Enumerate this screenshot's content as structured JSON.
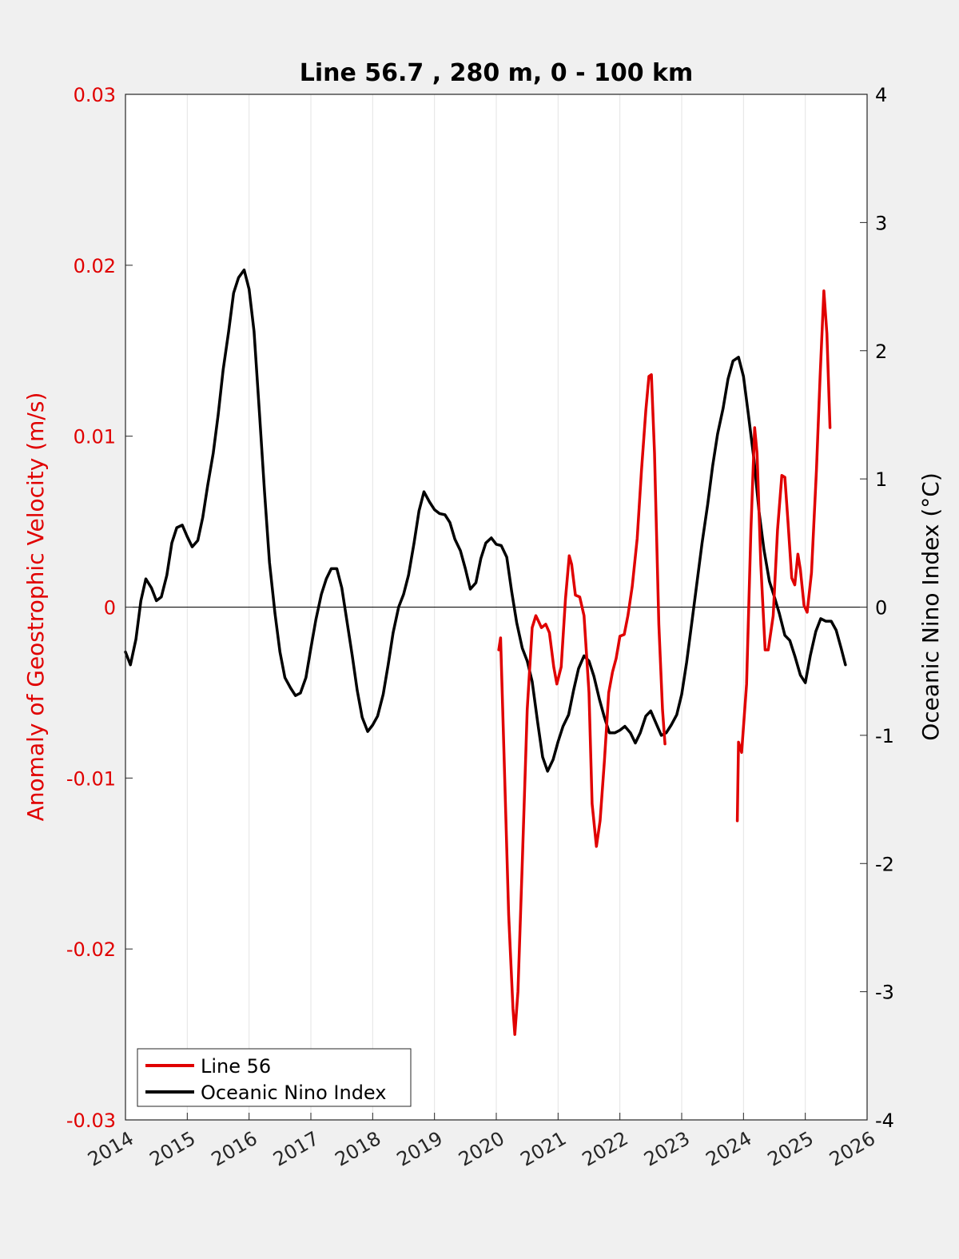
{
  "chart_data": {
    "type": "line",
    "title": "Line 56.7 , 280 m, 0 - 100 km",
    "ylabel_left": "Anomaly of Geostrophic Velocity (m/s)",
    "ylabel_right": "Oceanic Nino Index (°C)",
    "xlim": [
      2014,
      2026
    ],
    "ylim_left": [
      -0.03,
      0.03
    ],
    "ylim_right": [
      -4,
      4
    ],
    "x_ticks": [
      "2014",
      "2015",
      "2016",
      "2017",
      "2018",
      "2019",
      "2020",
      "2021",
      "2022",
      "2023",
      "2024",
      "2025",
      "2026"
    ],
    "y_left_ticks": [
      "0.03",
      "0.02",
      "0.01",
      "0",
      "-0.01",
      "-0.02",
      "-0.03"
    ],
    "y_right_ticks": [
      "4",
      "3",
      "2",
      "1",
      "0",
      "-1",
      "-2",
      "-3",
      "-4"
    ],
    "grid": "vertical",
    "legend_position": "bottom-left",
    "colors": {
      "line56": "#e00000",
      "oni": "#000000"
    },
    "series": [
      {
        "name": "Line 56",
        "axis": "left",
        "segments": [
          [
            [
              2020.04,
              -0.0025
            ],
            [
              2020.07,
              -0.0018
            ],
            [
              2020.12,
              -0.008
            ],
            [
              2020.2,
              -0.018
            ],
            [
              2020.27,
              -0.0235
            ],
            [
              2020.3,
              -0.025
            ],
            [
              2020.35,
              -0.0225
            ],
            [
              2020.42,
              -0.015
            ],
            [
              2020.5,
              -0.006
            ],
            [
              2020.58,
              -0.0012
            ],
            [
              2020.64,
              -0.0005
            ],
            [
              2020.68,
              -0.0008
            ],
            [
              2020.73,
              -0.0012
            ],
            [
              2020.8,
              -0.001
            ],
            [
              2020.86,
              -0.0015
            ],
            [
              2020.93,
              -0.0035
            ],
            [
              2020.98,
              -0.0045
            ],
            [
              2021.05,
              -0.0035
            ],
            [
              2021.12,
              0.0005
            ],
            [
              2021.18,
              0.003
            ],
            [
              2021.22,
              0.0025
            ],
            [
              2021.28,
              0.0007
            ],
            [
              2021.35,
              0.0006
            ],
            [
              2021.42,
              -0.0005
            ],
            [
              2021.5,
              -0.005
            ],
            [
              2021.55,
              -0.0115
            ],
            [
              2021.62,
              -0.014
            ],
            [
              2021.68,
              -0.0125
            ],
            [
              2021.75,
              -0.009
            ],
            [
              2021.82,
              -0.005
            ],
            [
              2021.88,
              -0.0038
            ],
            [
              2021.94,
              -0.003
            ],
            [
              2022.0,
              -0.0017
            ],
            [
              2022.07,
              -0.0016
            ],
            [
              2022.13,
              -0.0005
            ],
            [
              2022.2,
              0.0012
            ],
            [
              2022.28,
              0.004
            ],
            [
              2022.35,
              0.008
            ],
            [
              2022.42,
              0.0115
            ],
            [
              2022.47,
              0.0135
            ],
            [
              2022.51,
              0.0136
            ],
            [
              2022.56,
              0.009
            ],
            [
              2022.63,
              -0.001
            ],
            [
              2022.69,
              -0.006
            ],
            [
              2022.73,
              -0.008
            ]
          ],
          [
            [
              2023.9,
              -0.0125
            ],
            [
              2023.92,
              -0.0079
            ],
            [
              2023.97,
              -0.0085
            ],
            [
              2024.05,
              -0.0045
            ],
            [
              2024.12,
              0.0045
            ],
            [
              2024.18,
              0.0105
            ],
            [
              2024.22,
              0.009
            ],
            [
              2024.28,
              0.0025
            ],
            [
              2024.35,
              -0.0025
            ],
            [
              2024.4,
              -0.0025
            ],
            [
              2024.48,
              -0.0005
            ],
            [
              2024.55,
              0.0045
            ],
            [
              2024.62,
              0.0077
            ],
            [
              2024.67,
              0.0076
            ],
            [
              2024.72,
              0.005
            ],
            [
              2024.78,
              0.0017
            ],
            [
              2024.83,
              0.0013
            ],
            [
              2024.88,
              0.0031
            ],
            [
              2024.92,
              0.0022
            ],
            [
              2024.98,
              0.0001
            ],
            [
              2025.03,
              -0.0003
            ],
            [
              2025.1,
              0.002
            ],
            [
              2025.18,
              0.008
            ],
            [
              2025.24,
              0.0135
            ],
            [
              2025.3,
              0.0185
            ],
            [
              2025.35,
              0.016
            ],
            [
              2025.4,
              0.0105
            ]
          ]
        ]
      },
      {
        "name": "Oceanic Nino Index",
        "axis": "right",
        "points": [
          [
            2014.0,
            -0.35
          ],
          [
            2014.08,
            -0.45
          ],
          [
            2014.17,
            -0.25
          ],
          [
            2014.25,
            0.05
          ],
          [
            2014.33,
            0.22
          ],
          [
            2014.42,
            0.15
          ],
          [
            2014.5,
            0.05
          ],
          [
            2014.58,
            0.08
          ],
          [
            2014.67,
            0.25
          ],
          [
            2014.75,
            0.5
          ],
          [
            2014.83,
            0.62
          ],
          [
            2014.92,
            0.64
          ],
          [
            2015.0,
            0.55
          ],
          [
            2015.08,
            0.47
          ],
          [
            2015.17,
            0.52
          ],
          [
            2015.25,
            0.7
          ],
          [
            2015.33,
            0.95
          ],
          [
            2015.42,
            1.2
          ],
          [
            2015.5,
            1.5
          ],
          [
            2015.58,
            1.85
          ],
          [
            2015.67,
            2.15
          ],
          [
            2015.75,
            2.45
          ],
          [
            2015.83,
            2.57
          ],
          [
            2015.92,
            2.63
          ],
          [
            2016.0,
            2.48
          ],
          [
            2016.08,
            2.15
          ],
          [
            2016.17,
            1.5
          ],
          [
            2016.25,
            0.9
          ],
          [
            2016.33,
            0.35
          ],
          [
            2016.42,
            -0.05
          ],
          [
            2016.5,
            -0.35
          ],
          [
            2016.58,
            -0.55
          ],
          [
            2016.67,
            -0.63
          ],
          [
            2016.75,
            -0.69
          ],
          [
            2016.83,
            -0.67
          ],
          [
            2016.92,
            -0.55
          ],
          [
            2017.0,
            -0.32
          ],
          [
            2017.08,
            -0.1
          ],
          [
            2017.17,
            0.1
          ],
          [
            2017.25,
            0.22
          ],
          [
            2017.33,
            0.3
          ],
          [
            2017.42,
            0.3
          ],
          [
            2017.5,
            0.15
          ],
          [
            2017.58,
            -0.1
          ],
          [
            2017.67,
            -0.38
          ],
          [
            2017.75,
            -0.65
          ],
          [
            2017.83,
            -0.86
          ],
          [
            2017.92,
            -0.97
          ],
          [
            2018.0,
            -0.92
          ],
          [
            2018.08,
            -0.85
          ],
          [
            2018.17,
            -0.68
          ],
          [
            2018.25,
            -0.45
          ],
          [
            2018.33,
            -0.2
          ],
          [
            2018.42,
            0.0
          ],
          [
            2018.5,
            0.1
          ],
          [
            2018.58,
            0.25
          ],
          [
            2018.67,
            0.5
          ],
          [
            2018.75,
            0.75
          ],
          [
            2018.83,
            0.9
          ],
          [
            2018.92,
            0.82
          ],
          [
            2019.0,
            0.76
          ],
          [
            2019.08,
            0.73
          ],
          [
            2019.17,
            0.72
          ],
          [
            2019.25,
            0.66
          ],
          [
            2019.33,
            0.53
          ],
          [
            2019.42,
            0.44
          ],
          [
            2019.5,
            0.3
          ],
          [
            2019.58,
            0.14
          ],
          [
            2019.67,
            0.19
          ],
          [
            2019.75,
            0.38
          ],
          [
            2019.83,
            0.5
          ],
          [
            2019.92,
            0.54
          ],
          [
            2020.0,
            0.49
          ],
          [
            2020.08,
            0.48
          ],
          [
            2020.17,
            0.39
          ],
          [
            2020.25,
            0.12
          ],
          [
            2020.33,
            -0.12
          ],
          [
            2020.42,
            -0.32
          ],
          [
            2020.5,
            -0.42
          ],
          [
            2020.58,
            -0.58
          ],
          [
            2020.67,
            -0.9
          ],
          [
            2020.75,
            -1.17
          ],
          [
            2020.83,
            -1.28
          ],
          [
            2020.92,
            -1.19
          ],
          [
            2021.0,
            -1.05
          ],
          [
            2021.08,
            -0.93
          ],
          [
            2021.17,
            -0.84
          ],
          [
            2021.25,
            -0.65
          ],
          [
            2021.33,
            -0.48
          ],
          [
            2021.42,
            -0.38
          ],
          [
            2021.5,
            -0.42
          ],
          [
            2021.58,
            -0.54
          ],
          [
            2021.67,
            -0.72
          ],
          [
            2021.75,
            -0.86
          ],
          [
            2021.83,
            -0.98
          ],
          [
            2021.92,
            -0.98
          ],
          [
            2022.0,
            -0.96
          ],
          [
            2022.08,
            -0.93
          ],
          [
            2022.17,
            -0.98
          ],
          [
            2022.25,
            -1.06
          ],
          [
            2022.33,
            -0.98
          ],
          [
            2022.42,
            -0.85
          ],
          [
            2022.5,
            -0.81
          ],
          [
            2022.58,
            -0.9
          ],
          [
            2022.67,
            -1.0
          ],
          [
            2022.75,
            -0.98
          ],
          [
            2022.83,
            -0.92
          ],
          [
            2022.92,
            -0.84
          ],
          [
            2023.0,
            -0.68
          ],
          [
            2023.08,
            -0.43
          ],
          [
            2023.17,
            -0.1
          ],
          [
            2023.25,
            0.2
          ],
          [
            2023.33,
            0.5
          ],
          [
            2023.42,
            0.8
          ],
          [
            2023.5,
            1.1
          ],
          [
            2023.58,
            1.35
          ],
          [
            2023.67,
            1.55
          ],
          [
            2023.75,
            1.78
          ],
          [
            2023.83,
            1.92
          ],
          [
            2023.92,
            1.95
          ],
          [
            2024.0,
            1.8
          ],
          [
            2024.08,
            1.5
          ],
          [
            2024.17,
            1.15
          ],
          [
            2024.25,
            0.75
          ],
          [
            2024.33,
            0.45
          ],
          [
            2024.42,
            0.2
          ],
          [
            2024.5,
            0.08
          ],
          [
            2024.58,
            -0.05
          ],
          [
            2024.67,
            -0.22
          ],
          [
            2024.75,
            -0.26
          ],
          [
            2024.83,
            -0.38
          ],
          [
            2024.92,
            -0.53
          ],
          [
            2025.0,
            -0.59
          ],
          [
            2025.08,
            -0.38
          ],
          [
            2025.17,
            -0.19
          ],
          [
            2025.25,
            -0.09
          ],
          [
            2025.33,
            -0.11
          ],
          [
            2025.42,
            -0.11
          ],
          [
            2025.5,
            -0.18
          ],
          [
            2025.58,
            -0.32
          ],
          [
            2025.65,
            -0.45
          ]
        ]
      }
    ]
  }
}
